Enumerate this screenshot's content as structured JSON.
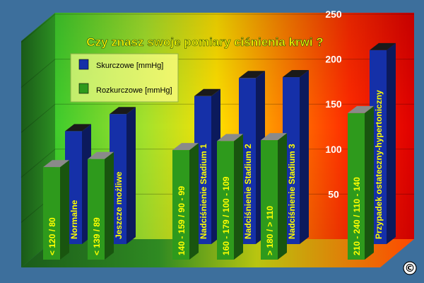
{
  "chart_data": {
    "type": "bar",
    "title": "Czy znasz swoje pomiary ciśnienia krwi ?",
    "y_ticks": [
      "50",
      "100",
      "150",
      "200",
      "250"
    ],
    "ylim": [
      0,
      250
    ],
    "legend_position": "top-left",
    "series": [
      {
        "name": "Skurczowe [mmHg]",
        "color": "#1530a8",
        "values": [
          120,
          139,
          159,
          179,
          180,
          210
        ]
      },
      {
        "name": "Rozkurczowe [mmHg]",
        "color": "#2e9a1c",
        "values": [
          80,
          89,
          99,
          109,
          110,
          140
        ]
      }
    ],
    "categories": [
      {
        "systolic_label": "Normalne",
        "diastolic_label": "< 120 / 80"
      },
      {
        "systolic_label": "Jeszcze możliwe",
        "diastolic_label": "< 139 / 89"
      },
      {
        "systolic_label": "Nadciśnienie Stadium 1",
        "diastolic_label": "140 - 159 / 90 - 99"
      },
      {
        "systolic_label": "Nadciśnienie Stadium 2",
        "diastolic_label": "160 - 179 / 100 - 109"
      },
      {
        "systolic_label": "Nadciśnienie Stadium 3",
        "diastolic_label": "> 180 / > 110"
      },
      {
        "systolic_label": "Przypadek ostateczny-hypertoniczny",
        "diastolic_label": "210 - 240 / 110 - 140"
      }
    ],
    "grid": true
  },
  "copyright": "©",
  "colors": {
    "background": "#3d6f9c",
    "title": "#ffff00",
    "bar_label": "#ffff00",
    "ticks": "#ffffff"
  }
}
